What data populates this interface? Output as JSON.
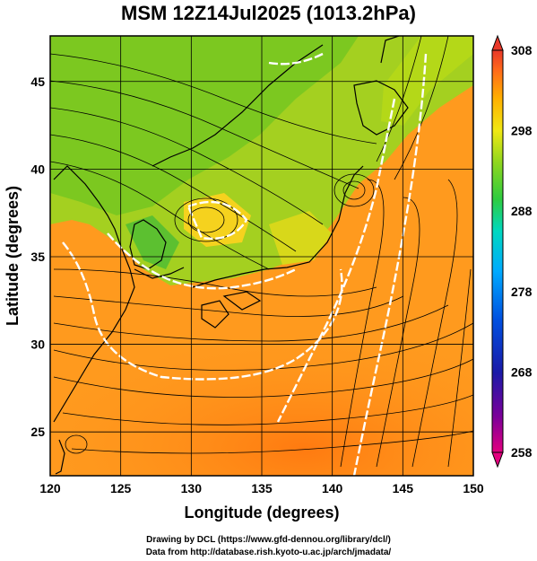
{
  "title": "MSM 12Z14Jul2025 (1013.2hPa)",
  "map": {
    "x_axis": {
      "label": "Longitude (degrees)",
      "range": [
        120,
        150
      ],
      "ticks": [
        "120",
        "125",
        "130",
        "135",
        "140",
        "145",
        "150"
      ]
    },
    "y_axis": {
      "label": "Latitude  (degrees)",
      "range": [
        22.5,
        47.6
      ],
      "ticks": [
        "25",
        "30",
        "35",
        "40",
        "45"
      ]
    },
    "grid": true,
    "background_field": "temperature (K)",
    "overlays": [
      "streamlines",
      "white contour lines",
      "coastlines"
    ]
  },
  "colorbar": {
    "range": [
      258,
      308
    ],
    "labels": [
      "308",
      "298",
      "288",
      "278",
      "268",
      "258"
    ],
    "colors": [
      "#e3007f",
      "#7a009a",
      "#1a1aa8",
      "#0050e0",
      "#00aaff",
      "#00d8c0",
      "#2ecc40",
      "#8ed61e",
      "#f0e814",
      "#ffb000",
      "#ff6a1a",
      "#e8382a"
    ]
  },
  "credits": {
    "line1": "Drawing by DCL (https://www.gfd-dennou.org/library/dcl/)",
    "line2": "Data from http://database.rish.kyoto-u.ac.jp/arch/jmadata/"
  }
}
